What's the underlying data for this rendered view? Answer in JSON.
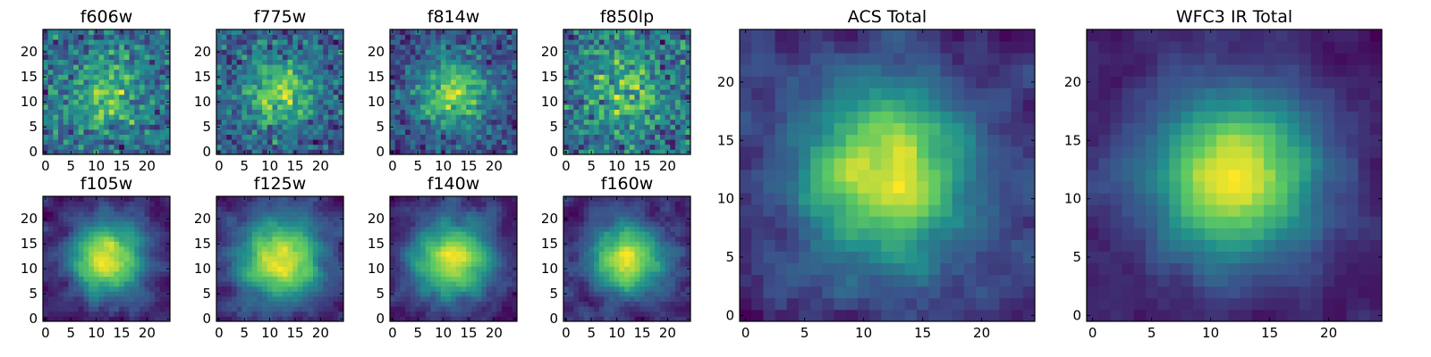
{
  "figure": {
    "background": "#ffffff",
    "colormap": "viridis",
    "colormap_stops": [
      "#440154",
      "#3b528b",
      "#21908d",
      "#5dc963",
      "#fde725"
    ]
  },
  "chart_data": [
    {
      "type": "heatmap",
      "title": "f606w",
      "grid": 25,
      "xlim": [
        -0.5,
        24.5
      ],
      "ylim": [
        -0.5,
        24.5
      ],
      "xticks": [
        0,
        5,
        10,
        15,
        20
      ],
      "yticks": [
        0,
        5,
        10,
        15,
        20
      ],
      "noise": 0.75,
      "signal": 0.35,
      "sigma": 5,
      "seed": 11
    },
    {
      "type": "heatmap",
      "title": "f775w",
      "grid": 25,
      "xlim": [
        -0.5,
        24.5
      ],
      "ylim": [
        -0.5,
        24.5
      ],
      "xticks": [
        0,
        5,
        10,
        15,
        20
      ],
      "yticks": [
        0,
        5,
        10,
        15,
        20
      ],
      "noise": 0.65,
      "signal": 0.45,
      "sigma": 5,
      "seed": 23
    },
    {
      "type": "heatmap",
      "title": "f814w",
      "grid": 25,
      "xlim": [
        -0.5,
        24.5
      ],
      "ylim": [
        -0.5,
        24.5
      ],
      "xticks": [
        0,
        5,
        10,
        15,
        20
      ],
      "yticks": [
        0,
        5,
        10,
        15,
        20
      ],
      "noise": 0.6,
      "signal": 0.55,
      "sigma": 5,
      "seed": 37
    },
    {
      "type": "heatmap",
      "title": "f850lp",
      "grid": 25,
      "xlim": [
        -0.5,
        24.5
      ],
      "ylim": [
        -0.5,
        24.5
      ],
      "xticks": [
        0,
        5,
        10,
        15,
        20
      ],
      "yticks": [
        0,
        5,
        10,
        15,
        20
      ],
      "noise": 0.8,
      "signal": 0.3,
      "sigma": 5,
      "seed": 41
    },
    {
      "type": "heatmap",
      "title": "f105w",
      "grid": 25,
      "xlim": [
        -0.5,
        24.5
      ],
      "ylim": [
        -0.5,
        24.5
      ],
      "xticks": [
        0,
        5,
        10,
        15,
        20
      ],
      "yticks": [
        0,
        5,
        10,
        15,
        20
      ],
      "noise": 0.45,
      "signal": 0.6,
      "sigma": 5,
      "seed": 53
    },
    {
      "type": "heatmap",
      "title": "f125w",
      "grid": 25,
      "xlim": [
        -0.5,
        24.5
      ],
      "ylim": [
        -0.5,
        24.5
      ],
      "xticks": [
        0,
        5,
        10,
        15,
        20
      ],
      "yticks": [
        0,
        5,
        10,
        15,
        20
      ],
      "noise": 0.45,
      "signal": 0.6,
      "sigma": 6,
      "seed": 67
    },
    {
      "type": "heatmap",
      "title": "f140w",
      "grid": 25,
      "xlim": [
        -0.5,
        24.5
      ],
      "ylim": [
        -0.5,
        24.5
      ],
      "xticks": [
        0,
        5,
        10,
        15,
        20
      ],
      "yticks": [
        0,
        5,
        10,
        15,
        20
      ],
      "noise": 0.45,
      "signal": 0.6,
      "sigma": 6,
      "seed": 71
    },
    {
      "type": "heatmap",
      "title": "f160w",
      "grid": 25,
      "xlim": [
        -0.5,
        24.5
      ],
      "ylim": [
        -0.5,
        24.5
      ],
      "xticks": [
        0,
        5,
        10,
        15,
        20
      ],
      "yticks": [
        0,
        5,
        10,
        15,
        20
      ],
      "noise": 0.5,
      "signal": 0.55,
      "sigma": 5,
      "seed": 83
    },
    {
      "type": "heatmap",
      "title": "ACS Total",
      "grid": 25,
      "xlim": [
        -0.5,
        24.5
      ],
      "ylim": [
        -0.5,
        24.5
      ],
      "xticks": [
        0,
        5,
        10,
        15,
        20
      ],
      "yticks": [
        0,
        5,
        10,
        15,
        20
      ],
      "noise": 0.5,
      "signal": 0.6,
      "sigma": 5,
      "seed": 97
    },
    {
      "type": "heatmap",
      "title": "WFC3 IR Total",
      "grid": 25,
      "xlim": [
        -0.5,
        24.5
      ],
      "ylim": [
        -0.5,
        24.5
      ],
      "xticks": [
        0,
        5,
        10,
        15,
        20
      ],
      "yticks": [
        0,
        5,
        10,
        15,
        20
      ],
      "noise": 0.35,
      "signal": 0.75,
      "sigma": 5,
      "seed": 101
    }
  ]
}
